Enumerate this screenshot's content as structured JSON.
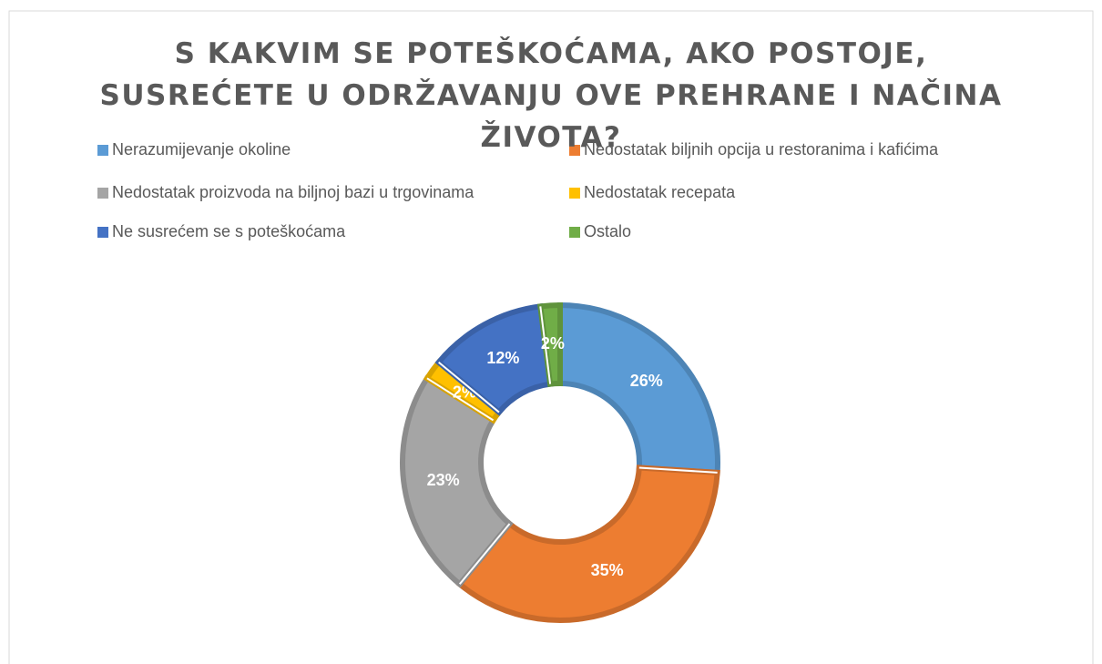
{
  "chart_data": {
    "type": "donut",
    "title": "S KAKVIM SE POTEŠKOĆAMA, AKO POSTOJE, SUSREĆETE U ODRŽAVANJU OVE PREHRANE I NAČINA ŽIVOTA?",
    "categories": [
      "Nerazumijevanje okoline",
      "Nedostatak biljnih opcija u restoranima i kafićima",
      "Nedostatak proizvoda na biljnoj bazi u trgovinama",
      "Nedostatak recepata",
      "Ne susrećem se s poteškoćama",
      "Ostalo"
    ],
    "values": [
      26,
      35,
      23,
      2,
      12,
      2
    ],
    "value_labels": [
      "26%",
      "35%",
      "23%",
      "2%",
      "12%",
      "2%"
    ],
    "colors": [
      "#5b9bd5",
      "#ed7d31",
      "#a5a5a5",
      "#ffc000",
      "#4472c4",
      "#70ad47"
    ],
    "legend": "top"
  }
}
